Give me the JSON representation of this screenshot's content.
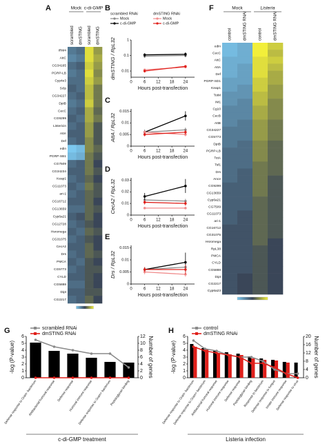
{
  "chart_data": [
    {
      "type": "heatmap",
      "panel": "A",
      "column_groups": [
        "Mock",
        "c-di-GMP"
      ],
      "columns": [
        "scrambled",
        "dmSTING",
        "scrambled",
        "dmSTING"
      ],
      "zlim": [
        -1,
        1
      ],
      "colormap": [
        "#7cc8ef",
        "#3a4658",
        "#f2ef3a"
      ],
      "rows": [
        "IRM4",
        "AttC",
        "CG34165",
        "PGRP-LB",
        "Cyp4e3",
        "Sclp",
        "CG34227",
        "DptB",
        "CecC",
        "CG9299",
        "Listericin",
        "AttA",
        "Def",
        "edin",
        "PGRP-SB1",
        "CG7509",
        "CG34234",
        "Keap1",
        "CG11073",
        "ari-1",
        "CG16712",
        "CG13659",
        "Cyp6a21",
        "CG12728",
        "Hsromega",
        "CG31075",
        "CecA2",
        "Drs",
        "PMCA",
        "CG5773",
        "CYLD",
        "CG5888",
        "Dipt",
        "CG2217"
      ],
      "values": [
        [
          -0.4,
          -0.3,
          0.9,
          0.5
        ],
        [
          -0.5,
          -0.4,
          0.9,
          0.6
        ],
        [
          -0.3,
          -0.2,
          0.8,
          0.5
        ],
        [
          -0.4,
          -0.3,
          0.9,
          0.4
        ],
        [
          -0.3,
          -0.3,
          0.8,
          0.5
        ],
        [
          -0.2,
          -0.3,
          0.7,
          0.3
        ],
        [
          -0.3,
          -0.2,
          0.7,
          0.3
        ],
        [
          -0.4,
          -0.3,
          0.8,
          0.3
        ],
        [
          -0.3,
          -0.2,
          0.6,
          0.2
        ],
        [
          -0.2,
          -0.3,
          0.6,
          0.3
        ],
        [
          -0.3,
          -0.2,
          0.5,
          0.1
        ],
        [
          -0.2,
          -0.2,
          0.5,
          0.1
        ],
        [
          -0.3,
          -0.2,
          0.4,
          0.1
        ],
        [
          -1,
          -0.9,
          0.4,
          0.2
        ],
        [
          -0.9,
          -0.8,
          0.3,
          0.1
        ],
        [
          -0.3,
          -0.2,
          0.3,
          0
        ],
        [
          -0.2,
          -0.2,
          0.3,
          0.1
        ],
        [
          -0.3,
          -0.2,
          0.2,
          0
        ],
        [
          -0.2,
          -0.3,
          0.3,
          0.1
        ],
        [
          -0.3,
          -0.2,
          0.2,
          0.1
        ],
        [
          -0.2,
          -0.2,
          0.2,
          0
        ],
        [
          -0.3,
          -0.3,
          0.2,
          0.1
        ],
        [
          -0.2,
          -0.1,
          0.2,
          0
        ],
        [
          -0.3,
          -0.2,
          0.1,
          0
        ],
        [
          -0.2,
          -0.3,
          0.2,
          0.1
        ],
        [
          -0.3,
          -0.2,
          0.1,
          0
        ],
        [
          -0.2,
          -0.2,
          0.2,
          0
        ],
        [
          -0.3,
          -0.2,
          0.2,
          0.1
        ],
        [
          -0.2,
          -0.3,
          0.1,
          0
        ],
        [
          -0.3,
          -0.2,
          0.1,
          0.1
        ],
        [
          -0.2,
          -0.2,
          0.1,
          0
        ],
        [
          -0.3,
          -0.3,
          0.1,
          0
        ],
        [
          -0.2,
          -0.2,
          0.1,
          0.1
        ],
        [
          -0.3,
          -0.2,
          0.2,
          0
        ]
      ]
    },
    {
      "type": "line",
      "panel": "B",
      "ylabel": "dmSTING / RpL32",
      "xlabel": "Hours post-transfection",
      "legend_groups": [
        "scrambled RNAi",
        "dmSTING RNAi"
      ],
      "x": [
        6,
        24
      ],
      "xlim": [
        0,
        28
      ],
      "xticks": [
        0,
        6,
        12,
        18,
        24
      ],
      "yscale": "log",
      "ylim": [
        0.004,
        1
      ],
      "yticks": [
        0.01,
        0.1,
        1
      ],
      "series": [
        {
          "name": "Mock",
          "color": "#8a8a8a",
          "values": [
            0.09,
            0.1
          ],
          "errors": [
            0.02,
            0.02
          ]
        },
        {
          "name": "c-di-GMP",
          "color": "#000000",
          "values": [
            0.11,
            0.12
          ],
          "errors": [
            0.03,
            0.04
          ]
        },
        {
          "name": "Mock",
          "color": "#f08c8c",
          "values": [
            0.012,
            0.018
          ],
          "errors": [
            0.002,
            0.003
          ]
        },
        {
          "name": "c-di-GMP",
          "color": "#e0201b",
          "values": [
            0.01,
            0.02
          ],
          "errors": [
            0.002,
            0.004
          ]
        }
      ]
    },
    {
      "type": "line",
      "panel": "C",
      "ylabel": "AttA / RpL32",
      "xlabel": "Hours post-transfection",
      "x": [
        6,
        24
      ],
      "xlim": [
        0,
        28
      ],
      "xticks": [
        0,
        6,
        12,
        18,
        24
      ],
      "ylim": [
        0,
        0.016
      ],
      "yticks": [
        0,
        0.005,
        0.01,
        0.015
      ],
      "series": [
        {
          "color": "#8a8a8a",
          "values": [
            0.006,
            0.007
          ],
          "errors": [
            0.0008,
            0.001
          ]
        },
        {
          "color": "#000000",
          "values": [
            0.006,
            0.013
          ],
          "errors": [
            0.001,
            0.002
          ]
        },
        {
          "color": "#f08c8c",
          "values": [
            0.006,
            0.005
          ],
          "errors": [
            0.0008,
            0.0008
          ]
        },
        {
          "color": "#e0201b",
          "values": [
            0.005,
            0.006
          ],
          "errors": [
            0.0008,
            0.001
          ]
        }
      ]
    },
    {
      "type": "line",
      "panel": "D",
      "ylabel": "CecA2 / RpL32",
      "xlabel": "Hours post-transfection",
      "x": [
        6,
        24
      ],
      "xlim": [
        0,
        28
      ],
      "xticks": [
        0,
        6,
        12,
        18,
        24
      ],
      "ylim": [
        0,
        0.032
      ],
      "yticks": [
        0,
        0.01,
        0.02,
        0.03
      ],
      "series": [
        {
          "color": "#8a8a8a",
          "values": [
            0.013,
            0.012
          ],
          "errors": [
            0.001,
            0.002
          ]
        },
        {
          "color": "#000000",
          "values": [
            0.016,
            0.025
          ],
          "errors": [
            0.003,
            0.006
          ]
        },
        {
          "color": "#f08c8c",
          "values": [
            0.006,
            0.006
          ],
          "errors": [
            0.001,
            0.001
          ]
        },
        {
          "color": "#e0201b",
          "values": [
            0.011,
            0.01
          ],
          "errors": [
            0.002,
            0.002
          ]
        }
      ]
    },
    {
      "type": "line",
      "panel": "E",
      "ylabel": "Drs / RpL32",
      "xlabel": "Hours post-transfection",
      "x": [
        6,
        24
      ],
      "xlim": [
        0,
        28
      ],
      "xticks": [
        0,
        6,
        12,
        18,
        24
      ],
      "ylim": [
        0,
        0.016
      ],
      "yticks": [
        0,
        0.005,
        0.01,
        0.015
      ],
      "series": [
        {
          "color": "#8a8a8a",
          "values": [
            0.006,
            0.007
          ],
          "errors": [
            0.001,
            0.002
          ]
        },
        {
          "color": "#000000",
          "values": [
            0.006,
            0.009
          ],
          "errors": [
            0.001,
            0.004
          ]
        },
        {
          "color": "#f08c8c",
          "values": [
            0.005,
            0.004
          ],
          "errors": [
            0.001,
            0.001
          ]
        },
        {
          "color": "#e0201b",
          "values": [
            0.006,
            0.006
          ],
          "errors": [
            0.001,
            0.002
          ]
        }
      ]
    },
    {
      "type": "heatmap",
      "panel": "F",
      "column_groups": [
        "Mock",
        "Listeria"
      ],
      "columns": [
        "control",
        "dmSTING RNAi",
        "control",
        "dmSTING RNAi"
      ],
      "zlim": [
        -1,
        1
      ],
      "colormap": [
        "#7cc8ef",
        "#3a4658",
        "#f2ef3a"
      ],
      "rows": [
        "edin",
        "CecC",
        "AttC",
        "AttA",
        "Def",
        "PGRP-SD1",
        "Keap1",
        "TotM",
        "IM1",
        "Cg10",
        "CecB",
        "AttB",
        "CG34227",
        "CG5773",
        "DptB",
        "PGRP-LB",
        "TotA",
        "Tsf1",
        "Drs",
        "Ance",
        "CG9299",
        "CG13659",
        "Cyp6a21",
        "CG7509",
        "CG11073",
        "ari-1",
        "CG16712",
        "CG31075",
        "Hsromega",
        "RpL38",
        "PMCA",
        "CYLD",
        "CG5888",
        "Dipt",
        "CG2217",
        "Cyp6a23"
      ],
      "values": [
        [
          -0.9,
          -0.8,
          1,
          0.8
        ],
        [
          -0.9,
          -0.8,
          1,
          0.7
        ],
        [
          -0.8,
          -0.8,
          0.9,
          0.8
        ],
        [
          -0.8,
          -0.7,
          0.9,
          0.7
        ],
        [
          -0.8,
          -0.7,
          0.9,
          0.6
        ],
        [
          -0.7,
          -0.7,
          0.8,
          0.6
        ],
        [
          -0.7,
          -0.6,
          0.8,
          0.5
        ],
        [
          -0.6,
          -0.6,
          0.7,
          0.5
        ],
        [
          -0.6,
          -0.5,
          0.7,
          0.4
        ],
        [
          -0.5,
          -0.5,
          0.6,
          0.4
        ],
        [
          -0.5,
          -0.5,
          0.6,
          0.4
        ],
        [
          -0.5,
          -0.4,
          0.5,
          0.3
        ],
        [
          -0.4,
          -0.4,
          0.5,
          0.3
        ],
        [
          -0.4,
          -0.4,
          0.5,
          0.3
        ],
        [
          -0.4,
          -0.3,
          0.4,
          0.2
        ],
        [
          -0.3,
          -0.3,
          0.4,
          0.2
        ],
        [
          -0.3,
          -0.3,
          0.4,
          0.2
        ],
        [
          -0.3,
          -0.3,
          0.3,
          0.2
        ],
        [
          -0.3,
          -0.2,
          0.3,
          0.2
        ],
        [
          -0.3,
          -0.2,
          0.3,
          0.1
        ],
        [
          -0.2,
          -0.2,
          0.3,
          0.1
        ],
        [
          -0.2,
          -0.2,
          0.3,
          0.1
        ],
        [
          -0.2,
          -0.2,
          0.2,
          0.1
        ],
        [
          -0.2,
          -0.2,
          0.2,
          0.1
        ],
        [
          -0.2,
          -0.1,
          0.2,
          0.1
        ],
        [
          -0.2,
          -0.1,
          0.2,
          0.1
        ],
        [
          -0.1,
          -0.1,
          0.2,
          0.1
        ],
        [
          -0.1,
          -0.1,
          0.2,
          0.1
        ],
        [
          -0.1,
          -0.1,
          0.2,
          0
        ],
        [
          -0.1,
          -0.1,
          0.1,
          0
        ],
        [
          -0.1,
          -0.1,
          0.1,
          0
        ],
        [
          -0.1,
          -0.1,
          0.1,
          0
        ],
        [
          -0.1,
          -0.1,
          0.1,
          0
        ],
        [
          -0.1,
          0,
          0.1,
          0
        ],
        [
          -0.1,
          0,
          0.1,
          0
        ],
        [
          -0.1,
          0,
          0.1,
          0
        ]
      ]
    },
    {
      "type": "combo",
      "panel": "G",
      "ylabel": "-log (P-value)",
      "y2label": "Number of genes",
      "xlabel": "c-di-GMP treatment",
      "categories": [
        "Defense response to Gram- bacterium",
        "Antibacterial humoral response",
        "Defense response",
        "Humoral immune response",
        "Defense response to Gram+ bacterium",
        "Peptidoglycan binding"
      ],
      "ylim": [
        0,
        6
      ],
      "yticks": [
        0,
        1,
        2,
        3,
        4,
        5,
        6
      ],
      "y2lim": [
        0,
        12
      ],
      "y2ticks": [
        0,
        2,
        4,
        6,
        8,
        10,
        12
      ],
      "series": [
        {
          "kind": "bar",
          "color": "#000000",
          "values": [
            5.1,
            3.9,
            3.5,
            2.9,
            2.3,
            2.2
          ]
        },
        {
          "kind": "line",
          "axis": "y2",
          "name": "scrambled RNAi",
          "color": "#8a8a8a",
          "values": [
            11,
            9,
            8,
            7,
            7,
            3
          ]
        },
        {
          "kind": "line",
          "axis": "y2",
          "name": "dmSTING RNAi",
          "color": "#e0201b",
          "values": [
            0,
            0,
            0,
            0,
            0,
            0
          ]
        }
      ]
    },
    {
      "type": "combo",
      "panel": "H",
      "ylabel": "-log (P-value)",
      "y2label": "Number of genes",
      "xlabel": "Listeria infection",
      "categories": [
        "Defense response to Gram- bacterium",
        "Defense response to Gram+ bacterium",
        "Antibacterial humoral response",
        "Humoral immune response",
        "Defense response",
        "Peptidoglycan binding",
        "Response to bacterium",
        "Defense response to fungus",
        "Innate immune response",
        "Defense response to virus"
      ],
      "ylim": [
        0,
        6
      ],
      "yticks": [
        0,
        1,
        2,
        3,
        4,
        5,
        6
      ],
      "y2lim": [
        0,
        20
      ],
      "y2ticks": [
        0,
        4,
        8,
        12,
        16,
        20
      ],
      "series": [
        {
          "kind": "bar",
          "color": "#000000",
          "values": [
            4.9,
            4.3,
            3.9,
            3.7,
            3.5,
            3.1,
            2.8,
            2.6,
            2.3,
            2.2
          ]
        },
        {
          "kind": "bar",
          "color": "#e0201b",
          "values": [
            4.5,
            4.1,
            3.6,
            3.4,
            3.3,
            2.8,
            2.6,
            2.5,
            2.2,
            0
          ]
        },
        {
          "kind": "line",
          "axis": "y2",
          "name": "control",
          "color": "#8a8a8a",
          "values": [
            18,
            14,
            13,
            11,
            10,
            10,
            8,
            4,
            2,
            2
          ]
        },
        {
          "kind": "line",
          "axis": "y2",
          "name": "dmSTING RNAi",
          "color": "#e0201b",
          "values": [
            15,
            13,
            12,
            11,
            10,
            7,
            7,
            5,
            2,
            0
          ]
        }
      ]
    }
  ]
}
